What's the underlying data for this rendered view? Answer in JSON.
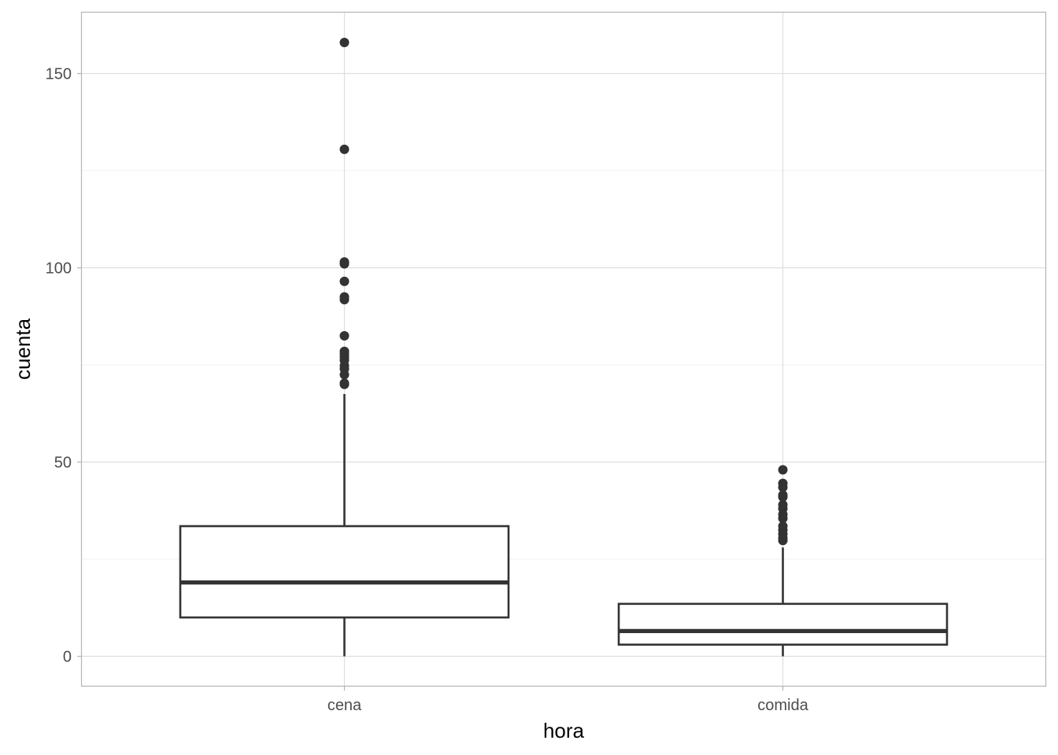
{
  "chart_data": {
    "type": "boxplot",
    "title": "",
    "xlabel": "hora",
    "ylabel": "cuenta",
    "ylim": [
      -7.7,
      165
    ],
    "y_ticks": [
      0,
      50,
      100,
      150
    ],
    "y_minor_ticks": [
      25,
      75,
      125
    ],
    "grid": true,
    "categories": [
      "cena",
      "comida"
    ],
    "boxes": [
      {
        "category": "cena",
        "whisker_low": 0,
        "q1": 10,
        "median": 19,
        "q3": 33.5,
        "whisker_high": 67.5,
        "outliers": [
          70,
          70.3,
          72.5,
          74,
          74.8,
          76.2,
          77,
          77.8,
          78.5,
          82.5,
          91.8,
          92.5,
          96.5,
          101,
          101.5,
          130.5,
          158
        ]
      },
      {
        "category": "comida",
        "whisker_low": 0,
        "q1": 3,
        "median": 6.5,
        "q3": 13.5,
        "whisker_high": 28,
        "outliers": [
          29.8,
          30.5,
          31.5,
          32.5,
          33.5,
          35.5,
          36.5,
          38,
          39,
          41,
          41.5,
          43.5,
          44.5,
          48
        ]
      }
    ]
  }
}
